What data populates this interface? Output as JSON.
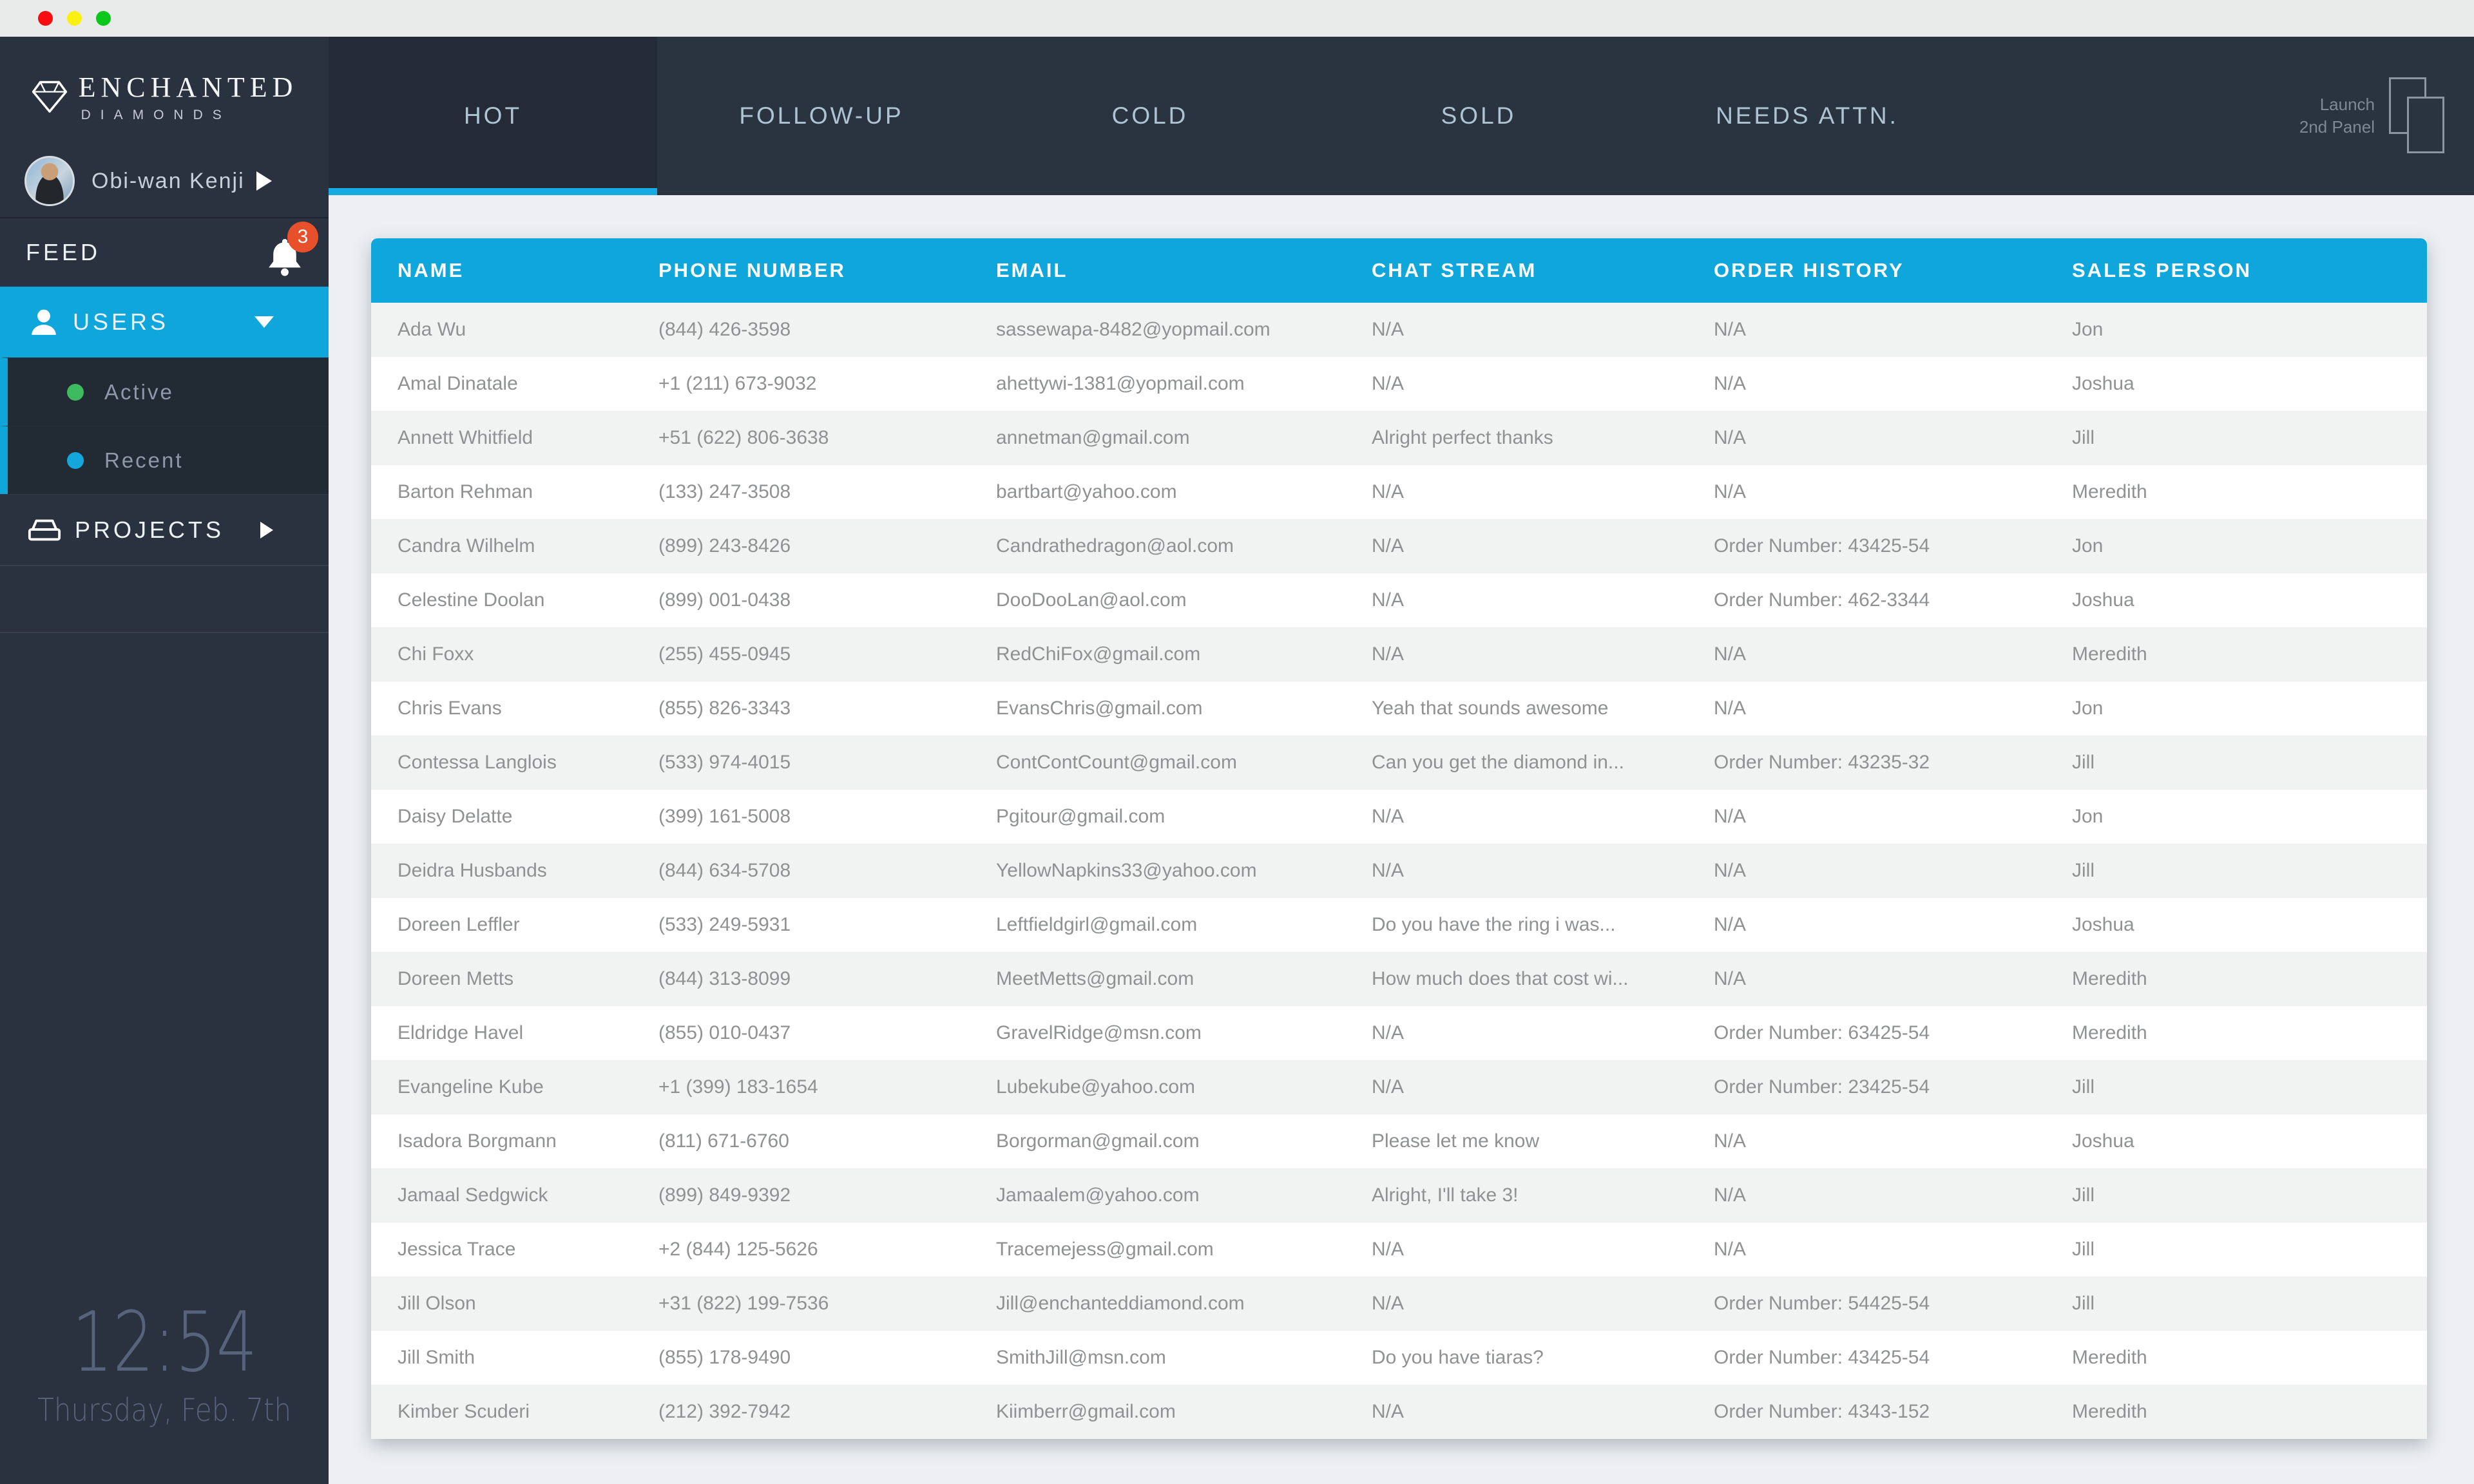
{
  "window": {
    "controls": [
      "close",
      "minimize",
      "zoom"
    ]
  },
  "brand": {
    "name_top": "ENCHANTED",
    "name_bottom": "DIAMONDS"
  },
  "user_menu": {
    "name": "Obi-wan Kenji"
  },
  "sidebar": {
    "feed": {
      "label": "FEED",
      "badge": "3"
    },
    "users": {
      "label": "USERS",
      "children": [
        {
          "label": "Active",
          "dot_color": "#3DBB5E"
        },
        {
          "label": "Recent",
          "dot_color": "#15A6DB"
        }
      ]
    },
    "projects": {
      "label": "PROJECTS"
    }
  },
  "clock": {
    "time": "12:54",
    "date": "Thursday, Feb. 7th"
  },
  "tabs": [
    {
      "label": "HOT",
      "active": true
    },
    {
      "label": "FOLLOW-UP",
      "active": false
    },
    {
      "label": "COLD",
      "active": false
    },
    {
      "label": "SOLD",
      "active": false
    },
    {
      "label": "NEEDS ATTN.",
      "active": false
    }
  ],
  "panel_launcher": {
    "line1": "Launch",
    "line2": "2nd Panel"
  },
  "table": {
    "columns": [
      "NAME",
      "PHONE NUMBER",
      "EMAIL",
      "CHAT STREAM",
      "ORDER HISTORY",
      "SALES PERSON"
    ],
    "rows": [
      [
        "Ada Wu",
        "(844) 426-3598",
        "sassewapa-8482@yopmail.com",
        "N/A",
        "N/A",
        "Jon"
      ],
      [
        "Amal Dinatale",
        "+1 (211) 673-9032",
        "ahettywi-1381@yopmail.com",
        "N/A",
        "N/A",
        "Joshua"
      ],
      [
        "Annett Whitfield",
        "+51 (622) 806-3638",
        "annetman@gmail.com",
        "Alright perfect thanks",
        "N/A",
        "Jill"
      ],
      [
        "Barton Rehman",
        "(133) 247-3508",
        "bartbart@yahoo.com",
        "N/A",
        "N/A",
        "Meredith"
      ],
      [
        "Candra Wilhelm",
        "(899) 243-8426",
        "Candrathedragon@aol.com",
        "N/A",
        "Order Number: 43425-54",
        "Jon"
      ],
      [
        "Celestine Doolan",
        "(899) 001-0438",
        "DooDooLan@aol.com",
        "N/A",
        "Order Number: 462-3344",
        "Joshua"
      ],
      [
        "Chi Foxx",
        "(255) 455-0945",
        "RedChiFox@gmail.com",
        "N/A",
        "N/A",
        "Meredith"
      ],
      [
        "Chris Evans",
        "(855) 826-3343",
        "EvansChris@gmail.com",
        "Yeah that sounds awesome",
        "N/A",
        "Jon"
      ],
      [
        "Contessa Langlois",
        "(533) 974-4015",
        "ContContCount@gmail.com",
        "Can you get the diamond in...",
        "Order Number: 43235-32",
        "Jill"
      ],
      [
        "Daisy Delatte",
        "(399) 161-5008",
        "Pgitour@gmail.com",
        "N/A",
        "N/A",
        "Jon"
      ],
      [
        "Deidra Husbands",
        "(844) 634-5708",
        "YellowNapkins33@yahoo.com",
        "N/A",
        "N/A",
        "Jill"
      ],
      [
        "Doreen Leffler",
        "(533) 249-5931",
        "Leftfieldgirl@gmail.com",
        "Do you have the ring i was...",
        "N/A",
        "Joshua"
      ],
      [
        "Doreen Metts",
        "(844) 313-8099",
        "MeetMetts@gmail.com",
        "How much does that cost wi...",
        "N/A",
        "Meredith"
      ],
      [
        "Eldridge Havel",
        "(855) 010-0437",
        "GravelRidge@msn.com",
        "N/A",
        "Order Number: 63425-54",
        "Meredith"
      ],
      [
        "Evangeline Kube",
        "+1 (399) 183-1654",
        "Lubekube@yahoo.com",
        "N/A",
        "Order Number: 23425-54",
        "Jill"
      ],
      [
        "Isadora Borgmann",
        "(811) 671-6760",
        "Borgorman@gmail.com",
        "Please let me know",
        "N/A",
        "Joshua"
      ],
      [
        "Jamaal Sedgwick",
        "(899) 849-9392",
        "Jamaalem@yahoo.com",
        "Alright, I'll take 3!",
        "N/A",
        "Jill"
      ],
      [
        "Jessica Trace",
        "+2 (844) 125-5626",
        "Tracemejess@gmail.com",
        "N/A",
        "N/A",
        "Jill"
      ],
      [
        "Jill Olson",
        "+31 (822) 199-7536",
        "Jill@enchanteddiamond.com",
        "N/A",
        "Order Number: 54425-54",
        "Jill"
      ],
      [
        "Jill Smith",
        "(855) 178-9490",
        "SmithJill@msn.com",
        "Do you have tiaras?",
        "Order Number: 43425-54",
        "Meredith"
      ],
      [
        "Kimber Scuderi",
        "(212) 392-7942",
        "Kiimberr@gmail.com",
        "N/A",
        "Order Number: 4343-152",
        "Meredith"
      ]
    ]
  },
  "colors": {
    "accent": "#0FA6DC",
    "accent_bright": "#17ACE1",
    "badge": "#E8502C",
    "dot_green": "#3DBB5E",
    "dot_blue": "#15A6DB"
  }
}
